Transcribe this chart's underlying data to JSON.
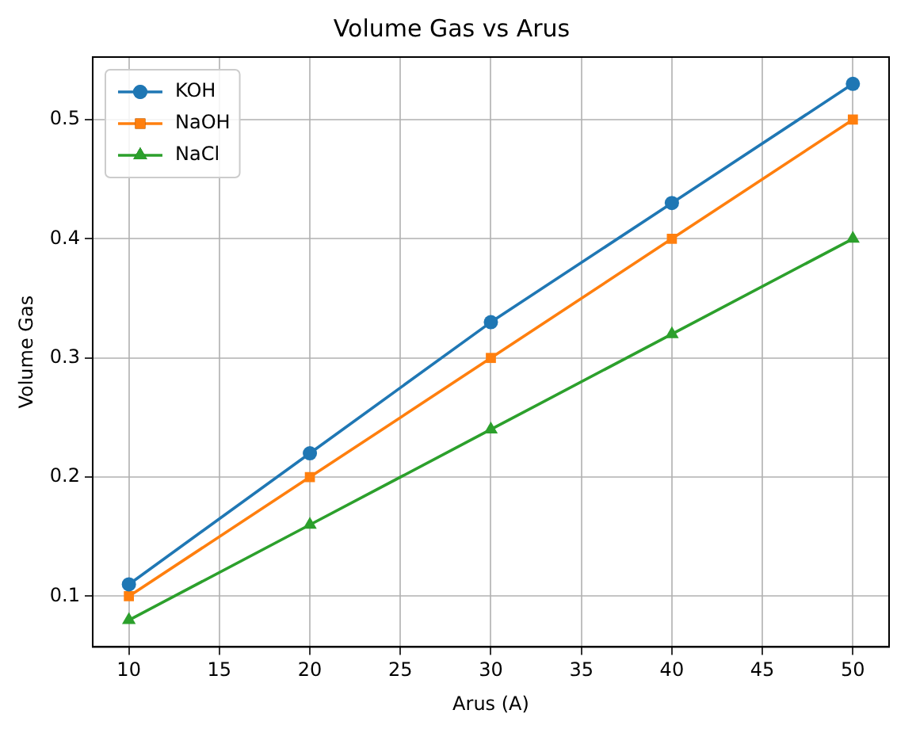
{
  "chart_data": {
    "type": "line",
    "title": "Volume Gas vs Arus",
    "xlabel": "Arus (A)",
    "ylabel": "Volume Gas",
    "x": [
      10,
      20,
      30,
      40,
      50
    ],
    "series": [
      {
        "name": "KOH",
        "color": "#1f77b4",
        "marker": "circle",
        "values": [
          0.11,
          0.22,
          0.33,
          0.43,
          0.53
        ]
      },
      {
        "name": "NaOH",
        "color": "#ff7f0e",
        "marker": "square",
        "values": [
          0.1,
          0.2,
          0.3,
          0.4,
          0.5
        ]
      },
      {
        "name": "NaCl",
        "color": "#2ca02c",
        "marker": "triangle",
        "values": [
          0.08,
          0.16,
          0.24,
          0.32,
          0.4
        ]
      }
    ],
    "xlim": [
      8,
      52
    ],
    "xticks": [
      10,
      15,
      20,
      25,
      30,
      35,
      40,
      45,
      50
    ],
    "ylim": [
      0.0575,
      0.5525
    ],
    "yticks": [
      0.1,
      0.2,
      0.3,
      0.4,
      0.5
    ],
    "grid": true,
    "legend": "top left",
    "line_style": "solid"
  }
}
